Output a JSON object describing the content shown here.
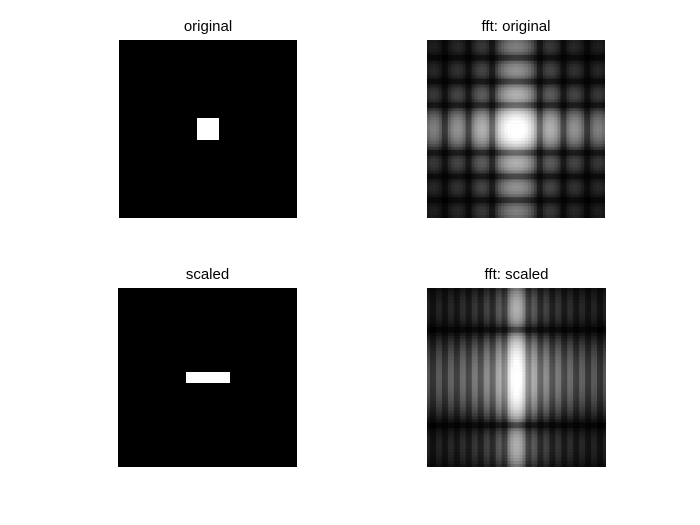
{
  "figure": {
    "background_color": "#ffffff",
    "image_background_color": "#000000",
    "foreground_color": "#ffffff"
  },
  "panels": [
    {
      "id": "original",
      "title": "original",
      "kind": "image-square-rect",
      "rect_frac": {
        "w": 0.125,
        "h": 0.125
      }
    },
    {
      "id": "fft-original",
      "title": "fft: original",
      "kind": "fft-spectrum",
      "rect_frac": {
        "w": 0.125,
        "h": 0.125
      }
    },
    {
      "id": "scaled",
      "title": "scaled",
      "kind": "image-wide-rect",
      "rect_frac": {
        "w": 0.25,
        "h": 0.0625
      }
    },
    {
      "id": "fft-scaled",
      "title": "fft: scaled",
      "kind": "fft-spectrum",
      "rect_frac": {
        "w": 0.25,
        "h": 0.0625
      }
    }
  ]
}
